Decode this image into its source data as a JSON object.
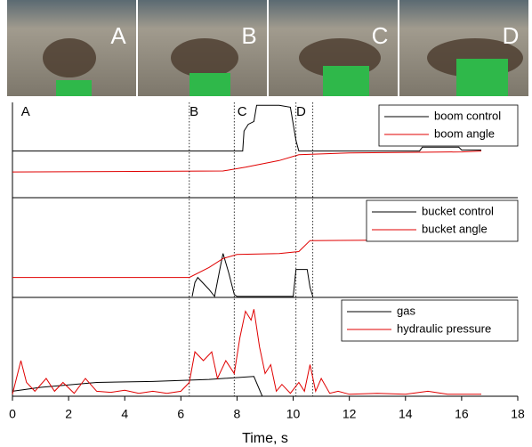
{
  "photo_labels": [
    "A",
    "B",
    "C",
    "D"
  ],
  "chart_data": [
    {
      "type": "line",
      "xlim": [
        0,
        18
      ],
      "ylim": [
        0,
        1
      ],
      "legend": "upper right",
      "annotations": {
        "labels": [
          {
            "text": "A",
            "x": 0.5
          },
          {
            "text": "B",
            "x": 6.5
          },
          {
            "text": "C",
            "x": 8.2
          },
          {
            "text": "D",
            "x": 10.3
          }
        ],
        "lines": [
          6.3,
          7.9,
          10.1,
          10.7
        ]
      },
      "series": [
        {
          "name": "boom control",
          "color": "#000000",
          "x": [
            0,
            8.2,
            8.25,
            8.4,
            8.6,
            8.7,
            9.5,
            9.9,
            10.1,
            10.2,
            14.5,
            14.6,
            15.9,
            16.0,
            16.7
          ],
          "values": [
            0.49,
            0.49,
            0.7,
            0.77,
            0.8,
            0.97,
            0.97,
            0.95,
            0.6,
            0.49,
            0.49,
            0.53,
            0.53,
            0.5,
            0.5
          ]
        },
        {
          "name": "boom angle",
          "color": "#e00000",
          "x": [
            0,
            7.5,
            8.3,
            9.5,
            10.2,
            12,
            16,
            16.7
          ],
          "values": [
            0.27,
            0.28,
            0.32,
            0.39,
            0.45,
            0.47,
            0.48,
            0.49
          ]
        }
      ]
    },
    {
      "type": "line",
      "xlim": [
        0,
        18
      ],
      "ylim": [
        0,
        1
      ],
      "legend": "upper right",
      "series": [
        {
          "name": "bucket control",
          "color": "#000000",
          "x": [
            6.4,
            6.5,
            6.6,
            7.0,
            7.2,
            7.4,
            7.5,
            7.7,
            7.9,
            8.0,
            10.0,
            10.1,
            10.5,
            10.6,
            10.7
          ],
          "values": [
            0.01,
            0.15,
            0.2,
            0.08,
            0.01,
            0.3,
            0.44,
            0.25,
            0.03,
            0.01,
            0.01,
            0.28,
            0.28,
            0.1,
            0.01
          ]
        },
        {
          "name": "bucket angle",
          "color": "#e00000",
          "x": [
            0,
            6.3,
            7.0,
            7.5,
            8.0,
            9.5,
            10.2,
            10.6,
            16.7
          ],
          "values": [
            0.2,
            0.2,
            0.3,
            0.39,
            0.43,
            0.44,
            0.46,
            0.57,
            0.58
          ]
        }
      ]
    },
    {
      "type": "line",
      "xlim": [
        0,
        18
      ],
      "ylim": [
        0,
        1
      ],
      "legend": "upper right",
      "xlabel": "Time, s",
      "xticks": [
        0,
        2,
        4,
        6,
        8,
        10,
        12,
        14,
        16,
        18
      ],
      "series": [
        {
          "name": "gas",
          "color": "#000000",
          "x": [
            0,
            1,
            3,
            5,
            7,
            8.6,
            8.9,
            16.7
          ],
          "values": [
            0.05,
            0.09,
            0.14,
            0.15,
            0.17,
            0.2,
            0.0,
            0.0
          ]
        },
        {
          "name": "hydraulic pressure",
          "color": "#e00000",
          "x": [
            0,
            0.3,
            0.5,
            0.8,
            1.2,
            1.5,
            1.8,
            2.2,
            2.6,
            3.0,
            3.5,
            4,
            4.5,
            5,
            5.5,
            6,
            6.3,
            6.5,
            6.8,
            7.1,
            7.3,
            7.6,
            7.9,
            8.1,
            8.3,
            8.5,
            8.6,
            8.8,
            9.0,
            9.2,
            9.4,
            9.6,
            9.9,
            10.2,
            10.4,
            10.6,
            10.8,
            11.0,
            11.3,
            11.6,
            12,
            13,
            14,
            14.8,
            15.5,
            16.7
          ],
          "values": [
            0.02,
            0.36,
            0.14,
            0.05,
            0.18,
            0.05,
            0.14,
            0.03,
            0.18,
            0.05,
            0.04,
            0.06,
            0.03,
            0.05,
            0.03,
            0.05,
            0.14,
            0.45,
            0.36,
            0.45,
            0.18,
            0.36,
            0.23,
            0.59,
            0.86,
            0.77,
            0.88,
            0.5,
            0.23,
            0.32,
            0.05,
            0.12,
            0.03,
            0.14,
            0.05,
            0.32,
            0.05,
            0.18,
            0.03,
            0.05,
            0.02,
            0.03,
            0.02,
            0.05,
            0.02,
            0.02
          ]
        }
      ]
    }
  ]
}
